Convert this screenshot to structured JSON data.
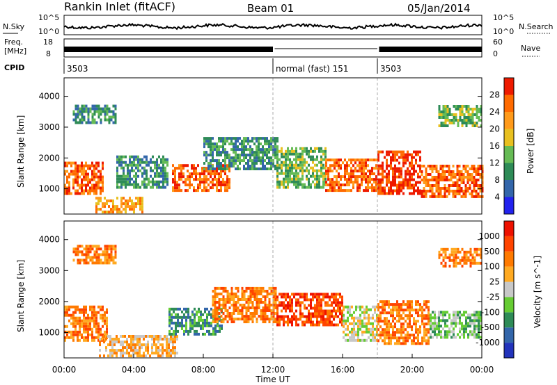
{
  "header": {
    "station": "Rankin Inlet (fitACF)",
    "beam": "Beam 01",
    "date": "05/Jan/2014"
  },
  "top_panel": {
    "nsky_label": "N.Sky",
    "nsky_ticks": [
      "10^5",
      "10^0"
    ],
    "nsearch_label": "N.Search",
    "nsearch_ticks": [
      "10^5",
      "10^0"
    ],
    "freq_label_1": "Freq.",
    "freq_label_2": "[MHz]",
    "freq_ticks": [
      "18",
      "8"
    ],
    "nave_label": "Nave",
    "nave_ticks": [
      "60",
      "0"
    ],
    "cpid_label": "CPID",
    "cpid_segments": [
      {
        "start_hour": 0,
        "text": "3503"
      },
      {
        "start_hour": 12,
        "text": "normal (fast) 151"
      },
      {
        "start_hour": 18,
        "text": "3503"
      }
    ]
  },
  "x_axis": {
    "label": "Time UT",
    "ticks": [
      "00:00",
      "04:00",
      "08:00",
      "12:00",
      "16:00",
      "20:00",
      "00:00"
    ]
  },
  "chart_data": [
    {
      "type": "heatmap",
      "name": "power",
      "ylabel": "Slant Range [km]",
      "xlim_hours": [
        0,
        24
      ],
      "ylim": [
        180,
        4600
      ],
      "yticks": [
        "4000",
        "3000",
        "2000",
        "1000"
      ],
      "colorbar_label": "Power [dB]",
      "colorbar_ticks": [
        "28",
        "24",
        "20",
        "16",
        "12",
        "8",
        "4"
      ],
      "colors": [
        "#2222ee",
        "#3366aa",
        "#2e8b57",
        "#66bb55",
        "#e8c020",
        "#ff9a1a",
        "#ff6a00",
        "#ee1a00"
      ],
      "regions": [
        {
          "h0": 0.0,
          "h1": 2.2,
          "r0": 800,
          "r1": 1800,
          "level": 6
        },
        {
          "h0": 1.8,
          "h1": 4.5,
          "r0": 200,
          "r1": 700,
          "level": 5
        },
        {
          "h0": 3.0,
          "h1": 6.0,
          "r0": 1000,
          "r1": 2000,
          "level": 2
        },
        {
          "h0": 6.2,
          "h1": 9.5,
          "r0": 900,
          "r1": 1800,
          "level": 6
        },
        {
          "h0": 8.0,
          "h1": 12.2,
          "r0": 1600,
          "r1": 2600,
          "level": 2
        },
        {
          "h0": 12.2,
          "h1": 15.0,
          "r0": 1000,
          "r1": 2300,
          "level": 3
        },
        {
          "h0": 15.0,
          "h1": 18.0,
          "r0": 900,
          "r1": 1900,
          "level": 6
        },
        {
          "h0": 18.0,
          "h1": 20.5,
          "r0": 800,
          "r1": 2200,
          "level": 7
        },
        {
          "h0": 20.5,
          "h1": 24.0,
          "r0": 700,
          "r1": 1700,
          "level": 6
        },
        {
          "h0": 0.5,
          "h1": 3.0,
          "r0": 3100,
          "r1": 3700,
          "level": 2
        },
        {
          "h0": 21.5,
          "h1": 24.0,
          "r0": 3000,
          "r1": 3700,
          "level": 3
        }
      ]
    },
    {
      "type": "heatmap",
      "name": "velocity",
      "ylabel": "Slant Range [km]",
      "xlim_hours": [
        0,
        24
      ],
      "ylim": [
        180,
        4600
      ],
      "yticks": [
        "4000",
        "3000",
        "2000",
        "1000"
      ],
      "colorbar_label": "Velocity [m s^-1]",
      "colorbar_ticks": [
        "1000",
        "500",
        "100",
        "25",
        "-25",
        "-100",
        "-500",
        "-1000"
      ],
      "colors": [
        "#2233bb",
        "#3366aa",
        "#2e8b57",
        "#66cc33",
        "#c8c8c8",
        "#ffaa22",
        "#ff7a00",
        "#ff4400",
        "#ee1100"
      ],
      "regions": [
        {
          "h0": 0.0,
          "h1": 2.5,
          "r0": 700,
          "r1": 1800,
          "level": 6
        },
        {
          "h0": 2.0,
          "h1": 6.5,
          "r0": 200,
          "r1": 900,
          "level": 5
        },
        {
          "h0": 6.0,
          "h1": 9.0,
          "r0": 900,
          "r1": 1800,
          "level": 2
        },
        {
          "h0": 8.5,
          "h1": 12.2,
          "r0": 1300,
          "r1": 2400,
          "level": 6
        },
        {
          "h0": 12.2,
          "h1": 16.0,
          "r0": 1200,
          "r1": 2200,
          "level": 7
        },
        {
          "h0": 16.0,
          "h1": 18.0,
          "r0": 700,
          "r1": 1800,
          "level": 4
        },
        {
          "h0": 18.0,
          "h1": 21.0,
          "r0": 600,
          "r1": 2000,
          "level": 6
        },
        {
          "h0": 21.0,
          "h1": 24.0,
          "r0": 800,
          "r1": 1700,
          "level": 3
        },
        {
          "h0": 0.5,
          "h1": 3.0,
          "r0": 3200,
          "r1": 3800,
          "level": 6
        },
        {
          "h0": 21.5,
          "h1": 24.0,
          "r0": 3100,
          "r1": 3700,
          "level": 6
        }
      ]
    }
  ]
}
